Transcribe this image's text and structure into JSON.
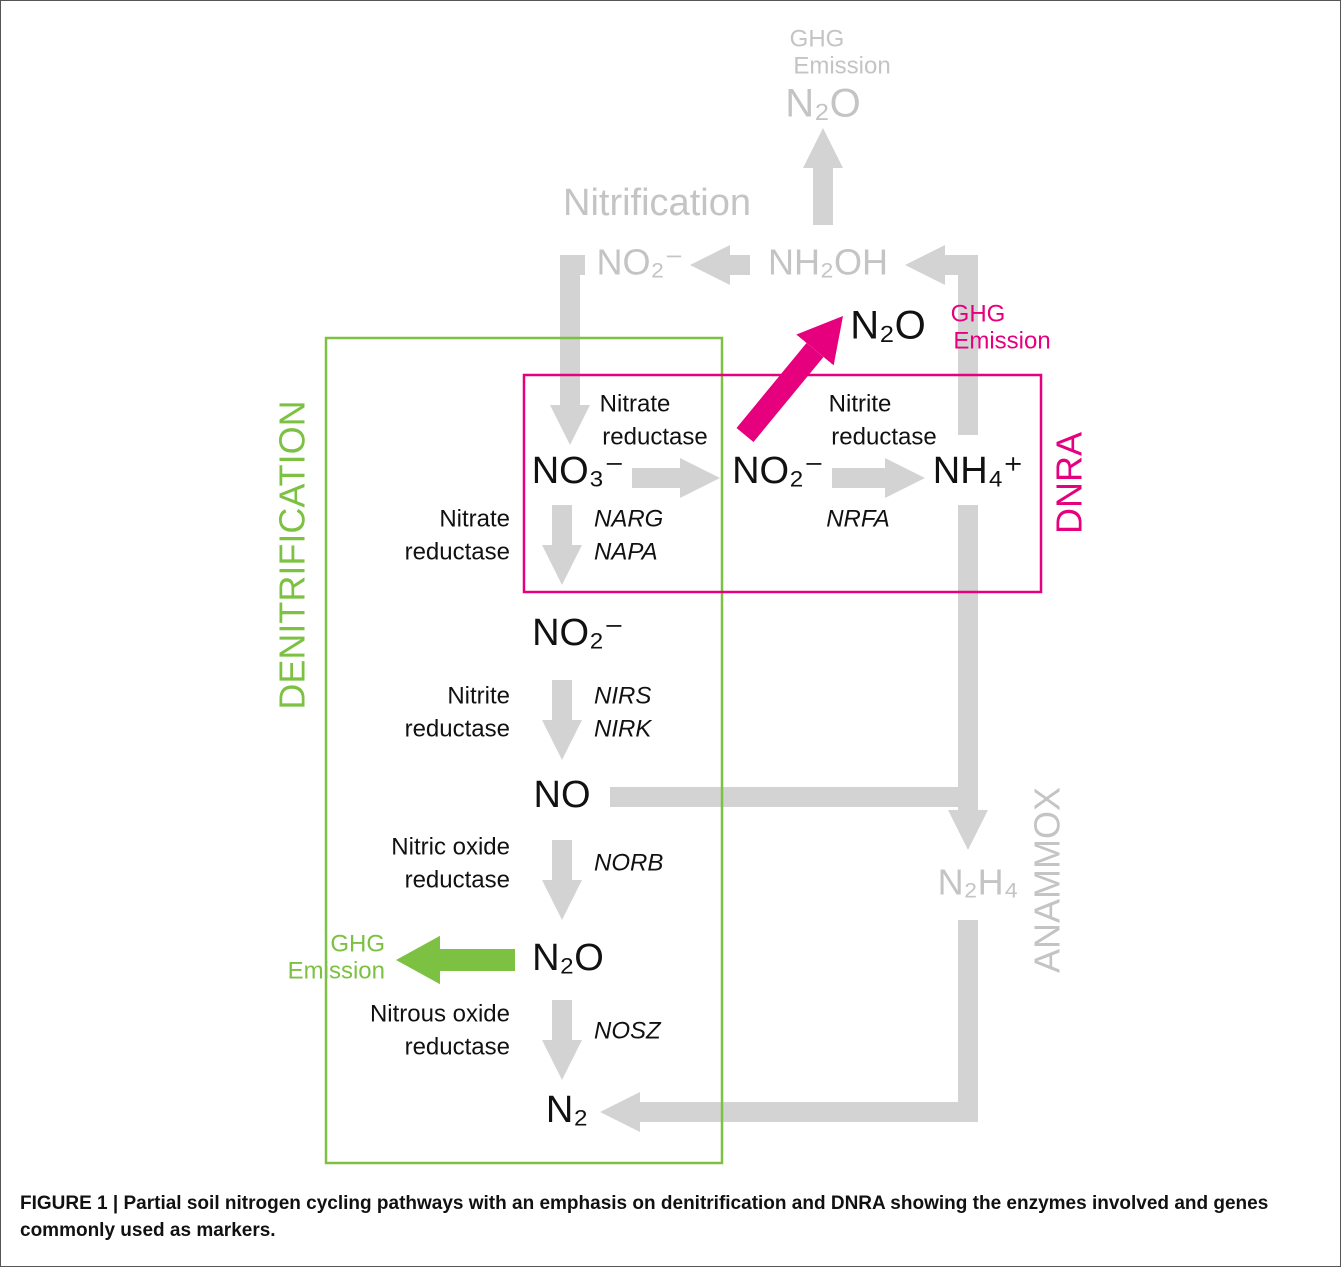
{
  "top_emission": {
    "line1": "GHG",
    "line2": "Emission",
    "species": "N₂O"
  },
  "nitrification": {
    "title": "Nitrification",
    "nitrite": "NO₂⁻",
    "hydroxylamine": "NH₂OH"
  },
  "dnra": {
    "title": "DNRA",
    "emission_species": "N₂O",
    "emission_line1": "GHG",
    "emission_line2": "Emission",
    "enzyme1": [
      "Nitrate",
      "reductase"
    ],
    "enzyme2": [
      "Nitrite",
      "reductase"
    ],
    "gene": "NRFA",
    "nitrite": "NO₂⁻",
    "ammonium": "NH₄⁺"
  },
  "denitrification": {
    "title": "DENITRIFICATION",
    "nitrate": "NO₃⁻",
    "steps": [
      {
        "enzyme": [
          "Nitrate",
          "reductase"
        ],
        "genes": [
          "NARG",
          "NAPA"
        ],
        "product": "NO₂⁻"
      },
      {
        "enzyme": [
          "Nitrite",
          "reductase"
        ],
        "genes": [
          "NIRS",
          "NIRK"
        ],
        "product": "NO"
      },
      {
        "enzyme": [
          "Nitric oxide",
          "reductase"
        ],
        "genes": [
          "NORB"
        ],
        "product": "N₂O"
      },
      {
        "enzyme": [
          "Nitrous oxide",
          "reductase"
        ],
        "genes": [
          "NOSZ"
        ],
        "product": "N₂"
      }
    ],
    "emission_line1": "GHG",
    "emission_line2": "Emission"
  },
  "anammox": {
    "title": "ANAMMOX",
    "hydrazine": "N₂H₄"
  },
  "caption": "FIGURE 1 | Partial soil nitrogen cycling pathways with an emphasis on denitrification and DNRA showing the enzymes involved and genes commonly used as markers."
}
